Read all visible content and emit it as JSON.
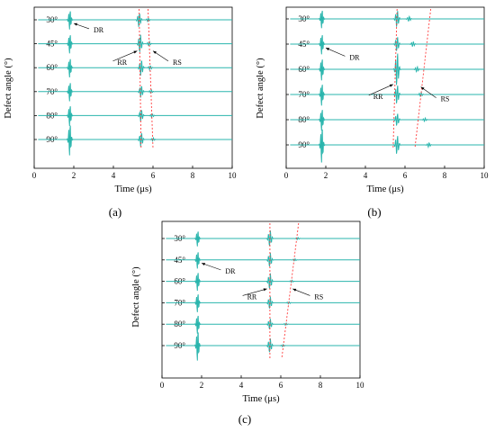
{
  "chart_data": [
    {
      "type": "line",
      "panel_label": "(a)",
      "xlabel": "Time (μs)",
      "ylabel": "Defect angle (°)",
      "xlim": [
        0,
        10
      ],
      "x_ticks": [
        "0",
        "2",
        "4",
        "6",
        "8",
        "10"
      ],
      "series": [
        {
          "label": "30°",
          "events": [
            {
              "t": 1.8,
              "a": 0.55
            },
            {
              "t": 5.3,
              "a": 0.35
            },
            {
              "t": 5.75,
              "a": 0.08
            }
          ]
        },
        {
          "label": "45°",
          "events": [
            {
              "t": 1.8,
              "a": 0.55
            },
            {
              "t": 5.35,
              "a": 0.45
            },
            {
              "t": 5.8,
              "a": 0.1
            }
          ]
        },
        {
          "label": "60°",
          "events": [
            {
              "t": 1.8,
              "a": 0.55
            },
            {
              "t": 5.4,
              "a": 0.4
            },
            {
              "t": 5.85,
              "a": 0.1
            }
          ]
        },
        {
          "label": "70°",
          "events": [
            {
              "t": 1.8,
              "a": 0.55
            },
            {
              "t": 5.4,
              "a": 0.3
            },
            {
              "t": 5.9,
              "a": 0.08
            }
          ]
        },
        {
          "label": "80°",
          "events": [
            {
              "t": 1.8,
              "a": 0.6
            },
            {
              "t": 5.4,
              "a": 0.3
            },
            {
              "t": 5.95,
              "a": 0.08
            }
          ]
        },
        {
          "label": "90°",
          "events": [
            {
              "t": 1.8,
              "a": 0.9
            },
            {
              "t": 5.4,
              "a": 0.35
            },
            {
              "t": 6.0,
              "a": 0.08
            }
          ]
        }
      ],
      "guides": [
        {
          "x_top": 5.3,
          "x_bottom": 5.4
        },
        {
          "x_top": 5.75,
          "x_bottom": 6.0
        }
      ],
      "annotations": [
        {
          "text": "DR",
          "x": 3.0,
          "row": 0.45,
          "target_x": 2.0,
          "target_row": 0.15
        },
        {
          "text": "RR",
          "x": 4.2,
          "row": 1.8,
          "target_x": 5.2,
          "target_row": 1.3
        },
        {
          "text": "RS",
          "x": 7.0,
          "row": 1.8,
          "target_x": 6.0,
          "target_row": 1.3
        }
      ]
    },
    {
      "type": "line",
      "panel_label": "(b)",
      "xlabel": "Time (μs)",
      "ylabel": "Defect angle (°)",
      "xlim": [
        0,
        10
      ],
      "x_ticks": [
        "0",
        "2",
        "4",
        "6",
        "8",
        "10"
      ],
      "series": [
        {
          "label": "30°",
          "events": [
            {
              "t": 1.8,
              "a": 0.5
            },
            {
              "t": 5.6,
              "a": 0.4
            },
            {
              "t": 6.2,
              "a": 0.12
            }
          ]
        },
        {
          "label": "45°",
          "events": [
            {
              "t": 1.8,
              "a": 0.55
            },
            {
              "t": 5.6,
              "a": 0.35
            },
            {
              "t": 6.4,
              "a": 0.12
            }
          ]
        },
        {
          "label": "60°",
          "events": [
            {
              "t": 1.8,
              "a": 0.6
            },
            {
              "t": 5.6,
              "a": 0.8
            },
            {
              "t": 6.6,
              "a": 0.12
            }
          ]
        },
        {
          "label": "70°",
          "events": [
            {
              "t": 1.8,
              "a": 0.6
            },
            {
              "t": 5.6,
              "a": 0.45
            },
            {
              "t": 6.8,
              "a": 0.1
            }
          ]
        },
        {
          "label": "80°",
          "events": [
            {
              "t": 1.8,
              "a": 0.6
            },
            {
              "t": 5.6,
              "a": 0.3
            },
            {
              "t": 7.0,
              "a": 0.08
            }
          ]
        },
        {
          "label": "90°",
          "events": [
            {
              "t": 1.8,
              "a": 0.95
            },
            {
              "t": 5.6,
              "a": 0.45
            },
            {
              "t": 7.2,
              "a": 0.1
            }
          ]
        }
      ],
      "guides": [
        {
          "x_top": 5.6,
          "x_bottom": 5.4
        },
        {
          "x_top": 7.3,
          "x_bottom": 6.5
        }
      ],
      "annotations": [
        {
          "text": "DR",
          "x": 3.2,
          "row": 1.55,
          "target_x": 2.0,
          "target_row": 1.15
        },
        {
          "text": "RR",
          "x": 4.4,
          "row": 3.1,
          "target_x": 5.4,
          "target_row": 2.6
        },
        {
          "text": "RS",
          "x": 7.8,
          "row": 3.2,
          "target_x": 6.8,
          "target_row": 2.7
        }
      ]
    },
    {
      "type": "line",
      "panel_label": "(c)",
      "xlabel": "Time (μs)",
      "ylabel": "Defect angle (°)",
      "xlim": [
        0,
        10
      ],
      "x_ticks": [
        "0",
        "2",
        "4",
        "6",
        "8",
        "10"
      ],
      "series": [
        {
          "label": "30°",
          "events": [
            {
              "t": 1.8,
              "a": 0.5
            },
            {
              "t": 5.45,
              "a": 0.45
            },
            {
              "t": 6.85,
              "a": 0.06
            }
          ]
        },
        {
          "label": "45°",
          "events": [
            {
              "t": 1.8,
              "a": 0.55
            },
            {
              "t": 5.45,
              "a": 0.4
            },
            {
              "t": 6.7,
              "a": 0.06
            }
          ]
        },
        {
          "label": "60°",
          "events": [
            {
              "t": 1.8,
              "a": 0.6
            },
            {
              "t": 5.45,
              "a": 0.45
            },
            {
              "t": 6.55,
              "a": 0.06
            }
          ]
        },
        {
          "label": "70°",
          "events": [
            {
              "t": 1.8,
              "a": 0.6
            },
            {
              "t": 5.45,
              "a": 0.35
            },
            {
              "t": 6.4,
              "a": 0.06
            }
          ]
        },
        {
          "label": "80°",
          "events": [
            {
              "t": 1.8,
              "a": 0.6
            },
            {
              "t": 5.45,
              "a": 0.3
            },
            {
              "t": 6.25,
              "a": 0.06
            }
          ]
        },
        {
          "label": "90°",
          "events": [
            {
              "t": 1.8,
              "a": 0.95
            },
            {
              "t": 5.45,
              "a": 0.4
            },
            {
              "t": 6.1,
              "a": 0.06
            }
          ]
        }
      ],
      "guides": [
        {
          "x_top": 5.45,
          "x_bottom": 5.45
        },
        {
          "x_top": 6.9,
          "x_bottom": 6.05
        }
      ],
      "annotations": [
        {
          "text": "DR",
          "x": 3.2,
          "row": 1.55,
          "target_x": 2.0,
          "target_row": 1.15
        },
        {
          "text": "RR",
          "x": 4.3,
          "row": 2.75,
          "target_x": 5.3,
          "target_row": 2.35
        },
        {
          "text": "RS",
          "x": 7.7,
          "row": 2.75,
          "target_x": 6.6,
          "target_row": 2.35
        }
      ]
    }
  ],
  "colors": {
    "trace": "#2ab5ad",
    "guide": "#ff3b3b",
    "axis": "#000000"
  }
}
